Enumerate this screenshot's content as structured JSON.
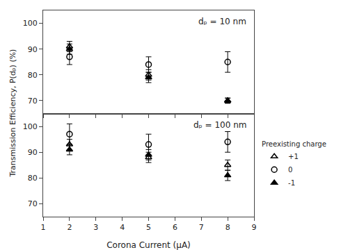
{
  "chart_data": [
    {
      "type": "scatter",
      "annotation": "dₚ = 10 nm",
      "ylabel": "Transmission Efficiency, P(dₚ) (%)",
      "x": [
        2,
        5,
        8
      ],
      "series": [
        {
          "name": "+1",
          "color": "black",
          "marker": "triangle-up-open",
          "values": [
            91,
            80,
            70
          ],
          "errors": [
            2,
            2,
            1
          ]
        },
        {
          "name": "0",
          "color": "black",
          "marker": "circle-open",
          "values": [
            87,
            84,
            85
          ],
          "errors": [
            3,
            3,
            4
          ]
        },
        {
          "name": "-1",
          "color": "black",
          "marker": "triangle-up",
          "values": [
            90,
            79,
            70
          ],
          "errors": [
            2,
            2,
            1
          ]
        }
      ],
      "xlim": [
        1,
        9
      ],
      "xticks": [
        1,
        2,
        3,
        4,
        5,
        6,
        7,
        8,
        9
      ],
      "ylim": [
        65,
        105
      ],
      "yticks": [
        70,
        80,
        90,
        100
      ],
      "grid": false,
      "tick_labels": "y"
    },
    {
      "type": "scatter",
      "annotation": "dₚ = 100 nm",
      "xlabel": "Corona Current (μA)",
      "x": [
        2,
        5,
        8
      ],
      "series": [
        {
          "name": "+1",
          "color": "black",
          "marker": "triangle-up-open",
          "values": [
            93,
            88,
            85
          ],
          "errors": [
            2,
            2,
            2
          ]
        },
        {
          "name": "0",
          "color": "black",
          "marker": "circle-open",
          "values": [
            97,
            93,
            94
          ],
          "errors": [
            4,
            4,
            4
          ]
        },
        {
          "name": "-1",
          "color": "black",
          "marker": "triangle-up",
          "values": [
            91,
            89,
            81
          ],
          "errors": [
            2,
            2,
            2
          ]
        }
      ],
      "xlim": [
        1,
        9
      ],
      "xticks": [
        1,
        2,
        3,
        4,
        5,
        6,
        7,
        8,
        9
      ],
      "ylim": [
        65,
        105
      ],
      "yticks": [
        70,
        80,
        90,
        100
      ],
      "grid": false,
      "legend": "right",
      "legend_title": "Preexisting charge"
    }
  ]
}
